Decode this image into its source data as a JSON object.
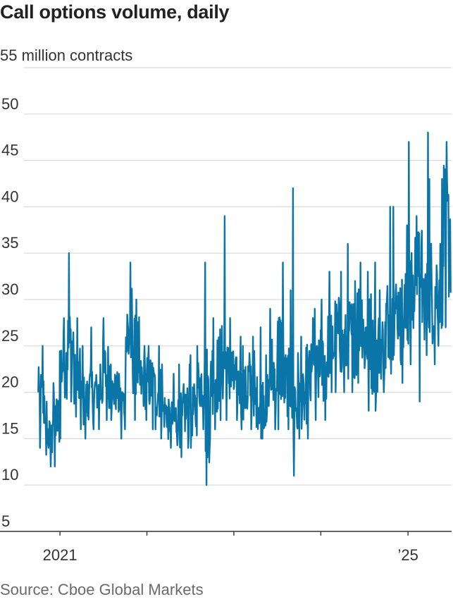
{
  "chart_data": {
    "type": "line",
    "title": "Call options volume, daily",
    "unit_label": "55 million contracts",
    "source": "Source: Cboe Global Markets",
    "ylim": [
      5,
      55
    ],
    "y_ticks": [
      5,
      10,
      15,
      20,
      25,
      30,
      35,
      40,
      45,
      50
    ],
    "y_tick_labels": [
      "5",
      "10",
      "15",
      "20",
      "25",
      "30",
      "35",
      "40",
      "45",
      "50"
    ],
    "x_range": [
      "2020-10-01",
      "2025-06-30"
    ],
    "x_ticks": [
      "2021-01-01",
      "2022-01-01",
      "2023-01-01",
      "2024-01-01",
      "2025-01-01"
    ],
    "x_tick_labels": [
      "2021",
      "",
      "",
      "",
      "’25"
    ],
    "grid": true,
    "colors": {
      "line": "#0b75a8",
      "grid": "#d9d9d9",
      "axis": "#333333"
    },
    "series": [
      {
        "x": [
          "2020-10",
          "2020-11",
          "2020-12",
          "2021-01",
          "2021-02",
          "2021-03",
          "2021-04",
          "2021-05",
          "2021-06",
          "2021-07",
          "2021-08",
          "2021-09",
          "2021-10",
          "2021-11",
          "2021-12",
          "2022-01",
          "2022-02",
          "2022-03",
          "2022-04",
          "2022-05",
          "2022-06",
          "2022-07",
          "2022-08",
          "2022-09",
          "2022-10",
          "2022-11",
          "2022-12",
          "2023-01",
          "2023-02",
          "2023-03",
          "2023-04",
          "2023-05",
          "2023-06",
          "2023-07",
          "2023-08",
          "2023-09",
          "2023-10",
          "2023-11",
          "2023-12",
          "2024-01",
          "2024-02",
          "2024-03",
          "2024-04",
          "2024-05",
          "2024-06",
          "2024-07",
          "2024-08",
          "2024-09",
          "2024-10",
          "2024-11",
          "2024-12",
          "2025-01",
          "2025-02",
          "2025-03",
          "2025-04",
          "2025-05",
          "2025-06"
        ],
        "y": [
          19,
          15,
          17,
          23,
          25,
          21,
          19,
          20,
          20,
          22,
          20,
          19,
          26,
          24,
          21,
          21,
          20,
          18,
          17,
          17,
          18,
          18,
          21,
          19,
          22,
          23,
          22,
          21,
          20,
          21,
          19,
          19,
          22,
          24,
          21,
          19,
          19,
          21,
          22,
          23,
          25,
          26,
          25,
          26,
          28,
          26,
          24,
          25,
          28,
          29,
          28,
          30,
          34,
          30,
          31,
          32,
          37
        ],
        "low": [
          14,
          12,
          12,
          15,
          19,
          16,
          15,
          16,
          16,
          17,
          17,
          15,
          16,
          17,
          17,
          16,
          16,
          15,
          14,
          13,
          14,
          14,
          16,
          10,
          16,
          17,
          17,
          17,
          16,
          16,
          15,
          15,
          16,
          16,
          16,
          11,
          15,
          15,
          17,
          17,
          20,
          20,
          20,
          20,
          21,
          18,
          18,
          20,
          22,
          24,
          21,
          23,
          19,
          24,
          23,
          25,
          27
        ],
        "high": [
          25,
          19,
          21,
          28,
          35,
          28,
          25,
          27,
          23,
          28,
          23,
          22,
          34,
          30,
          25,
          25,
          25,
          23,
          22,
          23,
          23,
          24,
          25,
          34,
          28,
          39,
          28,
          26,
          25,
          26,
          27,
          24,
          29,
          34,
          31,
          42,
          26,
          28,
          29,
          30,
          33,
          33,
          36,
          32,
          34,
          33,
          34,
          31,
          40,
          40,
          38,
          47,
          39,
          48,
          43,
          43,
          47
        ]
      }
    ]
  }
}
